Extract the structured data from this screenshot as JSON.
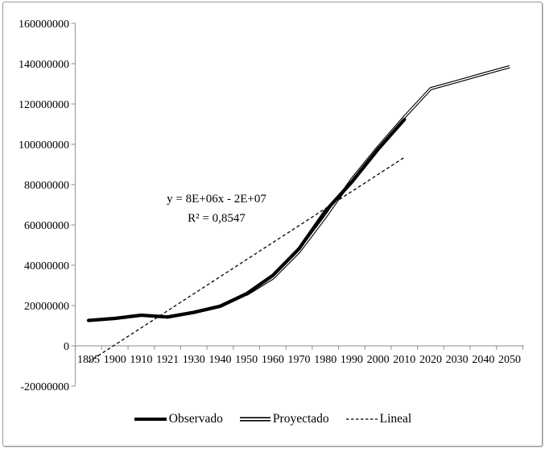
{
  "chart_data": {
    "type": "line",
    "title": "",
    "xlabel": "",
    "ylabel": "",
    "grid": false,
    "legend_position": "bottom",
    "categories": [
      "1895",
      "1900",
      "1910",
      "1921",
      "1930",
      "1940",
      "1950",
      "1960",
      "1970",
      "1980",
      "1990",
      "2000",
      "2010",
      "2020",
      "2030",
      "2040",
      "2050"
    ],
    "y_axis": {
      "min": -20000000,
      "max": 160000000,
      "step": 20000000,
      "tick_labels": [
        "160000000",
        "140000000",
        "120000000",
        "100000000",
        "80000000",
        "60000000",
        "40000000",
        "20000000",
        "0",
        "-20000000"
      ]
    },
    "series": [
      {
        "name": "Observado",
        "style": "thick-solid",
        "start_index": 0,
        "values": [
          12600000,
          13600000,
          15200000,
          14300000,
          16600000,
          19650000,
          25800000,
          34900000,
          48200000,
          66850000,
          81250000,
          97500000,
          112300000
        ]
      },
      {
        "name": "Proyectado",
        "style": "double-line",
        "start_index": 6,
        "values": [
          25500000,
          33600000,
          46700000,
          64000000,
          82500000,
          98500000,
          113500000,
          127600000,
          131200000,
          134900000,
          138500000
        ]
      },
      {
        "name": "Lineal",
        "style": "dashed-trendline",
        "points": [
          {
            "index": 0,
            "value": -8000000
          },
          {
            "index": 12,
            "value": 93500000
          }
        ]
      }
    ],
    "annotation": {
      "line1": "y = 8E+06x - 2E+07",
      "line2": "R² = 0,8547"
    }
  },
  "colors": {
    "series": "#000000",
    "axis": "#a0a0a0",
    "text": "#000000",
    "background": "#ffffff",
    "frame_border": "#9a9a9a"
  }
}
